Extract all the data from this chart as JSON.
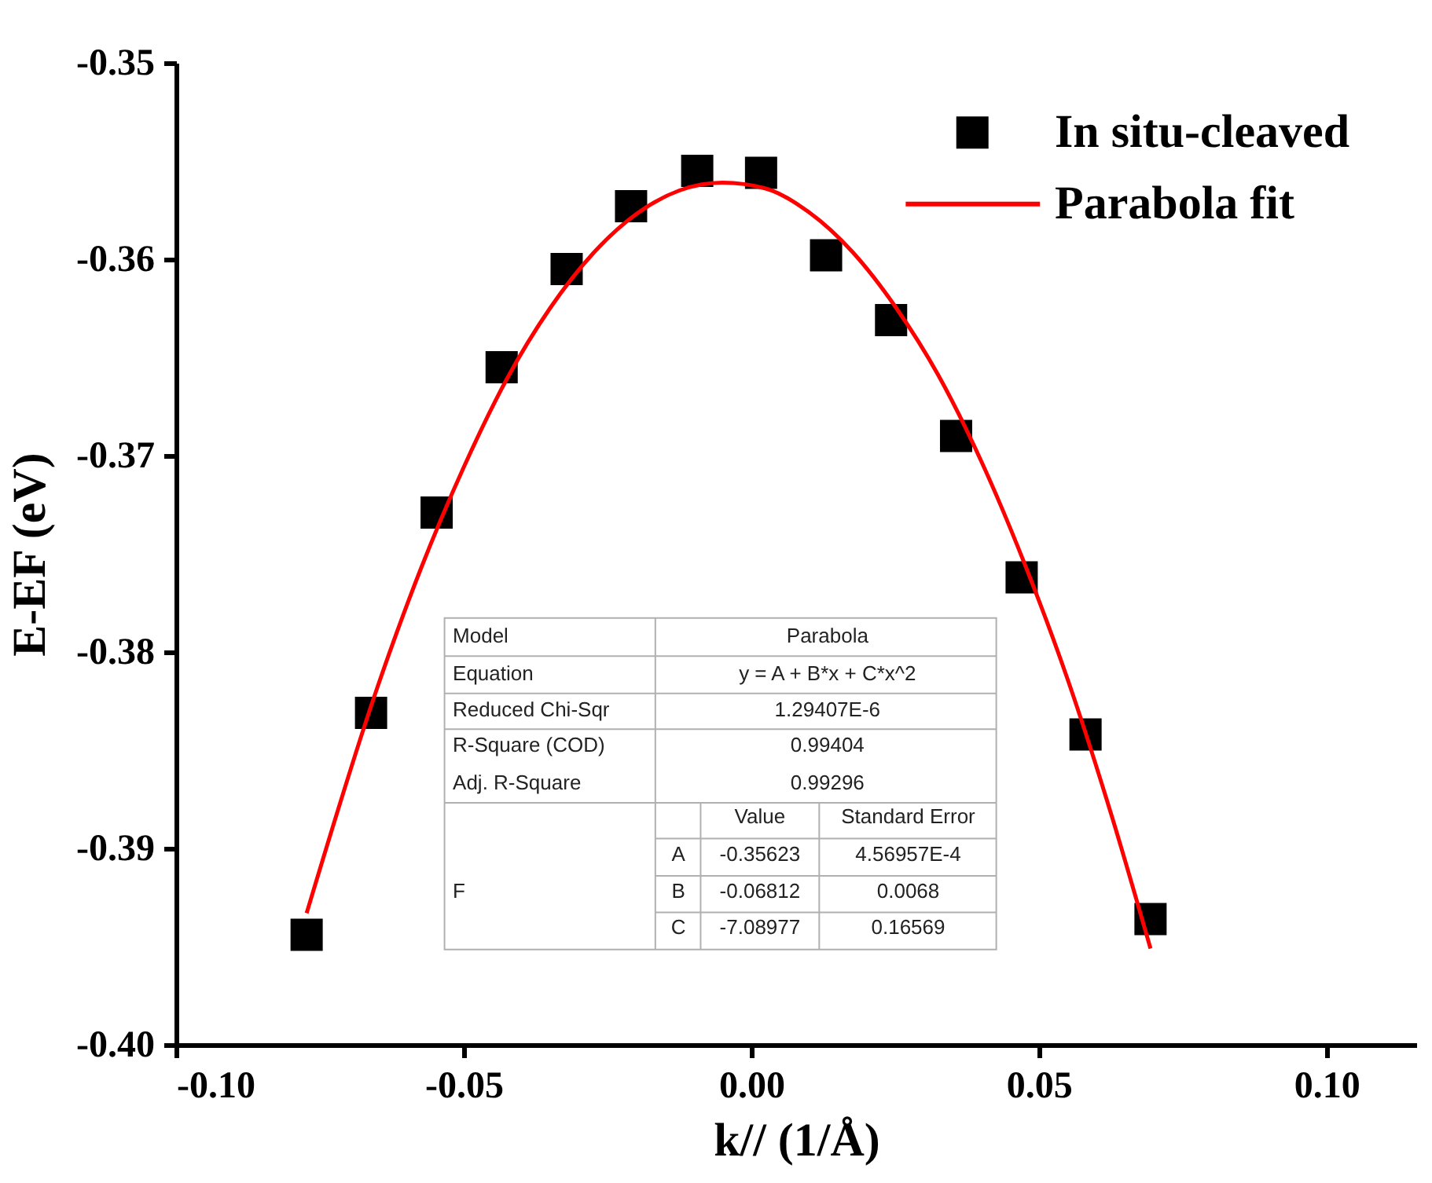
{
  "chart_data": {
    "type": "scatter",
    "xlabel": "k// (1/Å)",
    "ylabel": "E-EF (eV)",
    "xlim": [
      -0.1,
      0.1156
    ],
    "ylim": [
      -0.4,
      -0.35
    ],
    "xticks": [
      {
        "value": -0.1,
        "label": "-0.10"
      },
      {
        "value": -0.05,
        "label": "-0.05"
      },
      {
        "value": 0,
        "label": "0.00"
      },
      {
        "value": 0.05,
        "label": "0.05"
      },
      {
        "value": 0.1,
        "label": "0.10"
      }
    ],
    "yticks": [
      {
        "value": -0.4,
        "label": "-0.40"
      },
      -0.39,
      -0.38,
      -0.37,
      -0.36,
      -0.35
    ],
    "grid": false,
    "legend": "top right",
    "series": [
      {
        "name": "In situ-cleaved",
        "marker": "square",
        "color": "#000000",
        "x": [
          -0.0773,
          -0.0661,
          -0.0547,
          -0.0434,
          -0.0321,
          -0.0209,
          -0.0094,
          0.0017,
          0.013,
          0.0243,
          0.0356,
          0.047,
          0.0581,
          0.0694
        ],
        "values": [
          -0.3944,
          -0.3831,
          -0.3729,
          -0.3655,
          -0.3605,
          -0.3573,
          -0.3555,
          -0.3556,
          -0.3598,
          -0.3631,
          -0.369,
          -0.3762,
          -0.3842,
          -0.3936
        ]
      },
      {
        "name": "Parabola fit",
        "type": "line",
        "color": "#ff0000",
        "x": [
          -0.0773,
          -0.065,
          -0.0575,
          -0.05,
          -0.0425,
          -0.035,
          -0.0275,
          -0.02,
          -0.0125,
          -0.005,
          0.0025,
          0.01,
          0.0175,
          0.025,
          0.0325,
          0.04,
          0.0475,
          0.055,
          0.0625,
          0.0694
        ],
        "values": [
          -0.3933,
          -0.3818,
          -0.3758,
          -0.3706,
          -0.3661,
          -0.3625,
          -0.3597,
          -0.3577,
          -0.3565,
          -0.3561,
          -0.3564,
          -0.3576,
          -0.3596,
          -0.3624,
          -0.3659,
          -0.3703,
          -0.3755,
          -0.3814,
          -0.3882,
          -0.3951
        ]
      }
    ],
    "annotations": [
      "Model",
      "Parabola",
      "Equation",
      "y = A + B*x + C*x^2",
      "Reduced Chi-Sqr",
      "1.29407E-6",
      "R-Square (COD)",
      "0.99404",
      "Adj. R-Square",
      "0.99296",
      "Value",
      "Standard Error",
      "F",
      "A",
      "-0.35623",
      "4.56957E-4",
      "B",
      "-0.06812",
      "0.0068",
      "C",
      "-7.08977",
      "0.16569"
    ]
  }
}
